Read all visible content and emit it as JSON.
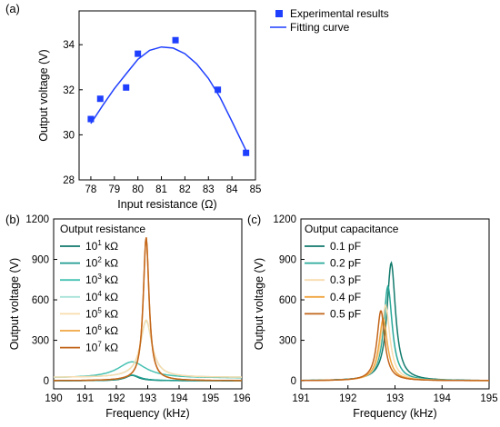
{
  "chart_data": [
    {
      "panel": "(a)",
      "type": "scatter",
      "xlabel": "Input resistance (Ω)",
      "ylabel": "Output voltage (V)",
      "xlim": [
        77.5,
        85
      ],
      "ylim": [
        28,
        35.5
      ],
      "xticks": [
        "78",
        "79",
        "80",
        "81",
        "82",
        "83",
        "84",
        "85"
      ],
      "yticks": [
        "28",
        "30",
        "32",
        "34"
      ],
      "legend_placement": "top-right",
      "series": [
        {
          "name": "Experimental results",
          "kind": "scatter",
          "color": "#1f3fff",
          "points": [
            [
              78.0,
              30.7
            ],
            [
              78.4,
              31.6
            ],
            [
              79.5,
              32.1
            ],
            [
              80.0,
              33.6
            ],
            [
              81.6,
              34.2
            ],
            [
              83.4,
              32.0
            ],
            [
              84.6,
              29.2
            ]
          ]
        },
        {
          "name": "Fitting curve",
          "kind": "line",
          "color": "#1f3fff",
          "points": [
            [
              78.0,
              30.5
            ],
            [
              78.5,
              31.3
            ],
            [
              79.0,
              32.05
            ],
            [
              79.5,
              32.7
            ],
            [
              80.0,
              33.35
            ],
            [
              80.5,
              33.75
            ],
            [
              81.0,
              33.9
            ],
            [
              81.5,
              33.85
            ],
            [
              82.0,
              33.6
            ],
            [
              82.5,
              33.15
            ],
            [
              83.0,
              32.5
            ],
            [
              83.5,
              31.65
            ],
            [
              84.0,
              30.6
            ],
            [
              84.6,
              29.3
            ]
          ]
        }
      ]
    },
    {
      "panel": "(b)",
      "type": "line",
      "xlabel": "Frequency (kHz)",
      "ylabel": "Output voltage (V)",
      "xlim": [
        190,
        196
      ],
      "ylim": [
        -60,
        1200
      ],
      "xticks": [
        "190",
        "191",
        "192",
        "193",
        "194",
        "195",
        "196"
      ],
      "yticks": [
        "0",
        "300",
        "600",
        "900",
        "1200"
      ],
      "legend_title": "Output resistance",
      "legend_placement": "top-left",
      "series": [
        {
          "name": "10",
          "exp": "1",
          "unit": "kΩ",
          "color": "#117a6c",
          "center": 192.5,
          "peak": 40,
          "base": 0,
          "gamma": 0.25
        },
        {
          "name": "10",
          "exp": "2",
          "unit": "kΩ",
          "color": "#1f9d8f",
          "center": 192.5,
          "peak": 42,
          "base": 0,
          "gamma": 0.3
        },
        {
          "name": "10",
          "exp": "3",
          "unit": "kΩ",
          "color": "#47c1b2",
          "center": 192.5,
          "peak": 140,
          "base": 20,
          "gamma": 0.55
        },
        {
          "name": "10",
          "exp": "4",
          "unit": "kΩ",
          "color": "#a8e3d9",
          "center": 192.95,
          "peak": 445,
          "base": 25,
          "gamma": 0.22
        },
        {
          "name": "10",
          "exp": "5",
          "unit": "kΩ",
          "color": "#f7dcae",
          "center": 192.95,
          "peak": 450,
          "base": 25,
          "gamma": 0.22
        },
        {
          "name": "10",
          "exp": "6",
          "unit": "kΩ",
          "color": "#f0a640",
          "center": 192.95,
          "peak": 1060,
          "base": 0,
          "gamma": 0.11
        },
        {
          "name": "10",
          "exp": "7",
          "unit": "kΩ",
          "color": "#c2651b",
          "center": 192.95,
          "peak": 1065,
          "base": 0,
          "gamma": 0.11
        }
      ]
    },
    {
      "panel": "(c)",
      "type": "line",
      "xlabel": "Frequency (kHz)",
      "ylabel": "Output voltage (V)",
      "xlim": [
        191,
        195
      ],
      "ylim": [
        -60,
        1200
      ],
      "xticks": [
        "191",
        "192",
        "193",
        "194",
        "195"
      ],
      "yticks": [
        "0",
        "300",
        "600",
        "900",
        "1200"
      ],
      "legend_title": "Output capacitance",
      "legend_placement": "top-left",
      "series": [
        {
          "name": "0.1 pF",
          "color": "#117a6c",
          "center": 192.92,
          "peak": 875,
          "gamma": 0.11
        },
        {
          "name": "0.2 pF",
          "color": "#2aa99a",
          "center": 192.85,
          "peak": 700,
          "gamma": 0.11
        },
        {
          "name": "0.3 pF",
          "color": "#f7dcae",
          "center": 192.8,
          "peak": 560,
          "gamma": 0.11
        },
        {
          "name": "0.4 pF",
          "color": "#f0a640",
          "center": 192.75,
          "peak": 460,
          "gamma": 0.11
        },
        {
          "name": "0.5 pF",
          "color": "#c2651b",
          "center": 192.7,
          "peak": 520,
          "gamma": 0.1
        }
      ]
    }
  ]
}
